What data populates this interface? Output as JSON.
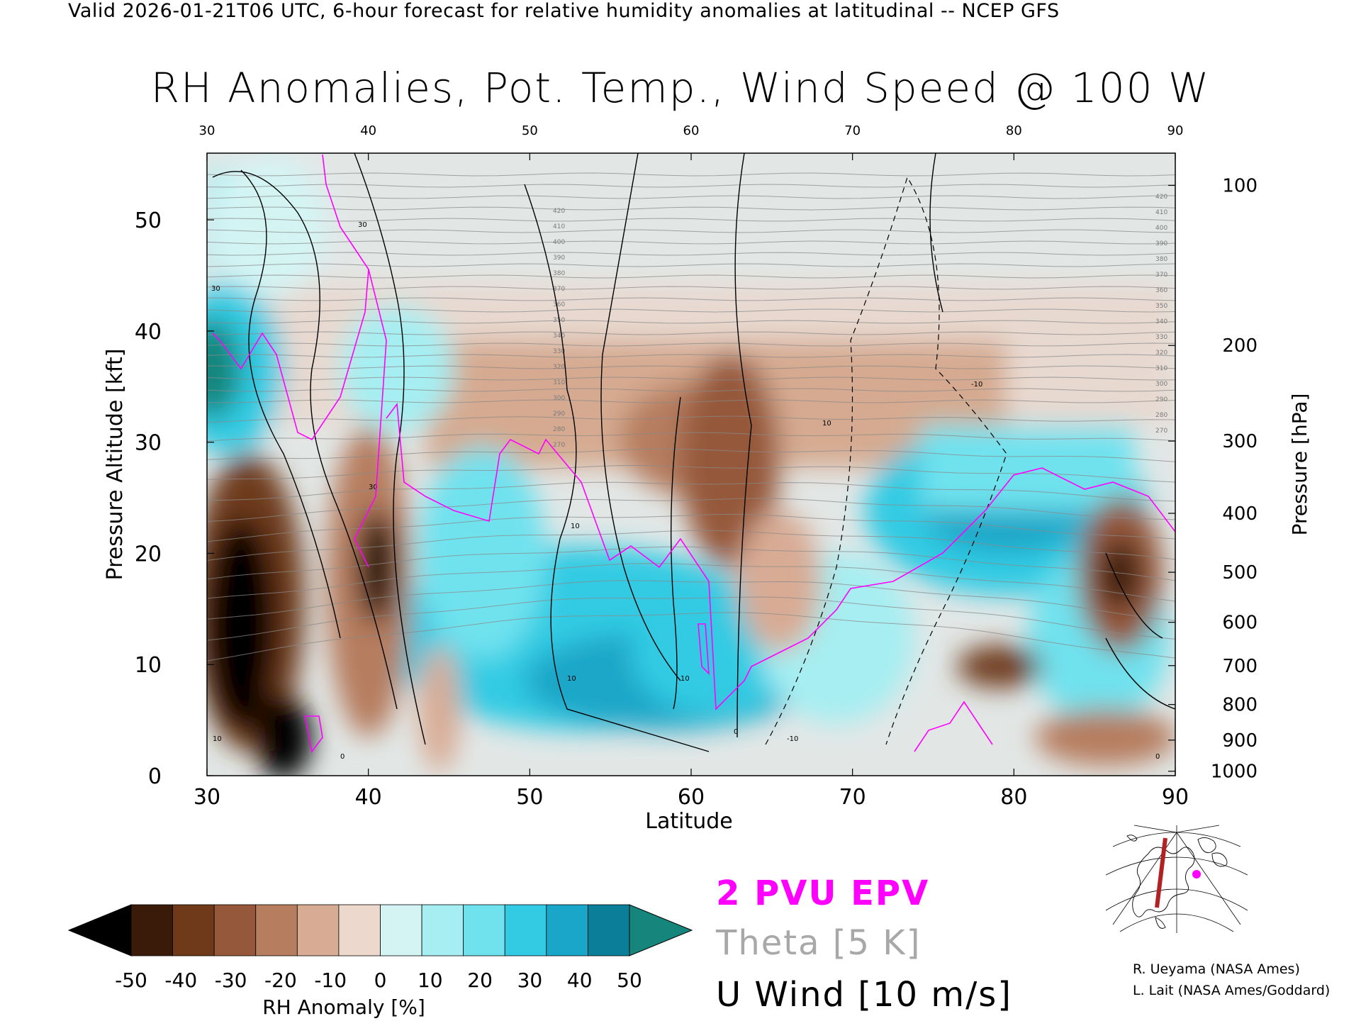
{
  "header": {
    "valid_line": "Valid 2026-01-21T06 UTC, 6-hour forecast for relative humidity anomalies at latitudinal -- NCEP GFS"
  },
  "chart_data": {
    "type": "heatmap",
    "title": "RH Anomalies, Pot. Temp., Wind Speed @ 100 W",
    "xlabel": "Latitude",
    "ylabel_left": "Pressure Altitude [kft]",
    "ylabel_right": "Pressure [hPa]",
    "xlim": [
      30,
      90
    ],
    "ylim": [
      0,
      56
    ],
    "x_ticks": [
      "30",
      "40",
      "50",
      "60",
      "70",
      "80",
      "90"
    ],
    "x_tick_values": [
      30,
      40,
      50,
      60,
      70,
      80,
      90
    ],
    "y_ticks": [
      "0",
      "10",
      "20",
      "30",
      "40",
      "50"
    ],
    "y_tick_values": [
      0,
      10,
      20,
      30,
      40,
      50
    ],
    "pressure_ticks": [
      "100",
      "200",
      "300",
      "400",
      "500",
      "600",
      "700",
      "800",
      "900",
      "1000"
    ],
    "pressure_tick_altitudes_kft": [
      53.1,
      38.7,
      30.1,
      23.6,
      18.3,
      13.8,
      9.9,
      6.4,
      3.2,
      0.4
    ],
    "colorbar": {
      "label": "RH Anomaly [%]",
      "ticks": [
        "-50",
        "-40",
        "-30",
        "-20",
        "-10",
        "0",
        "10",
        "20",
        "30",
        "40",
        "50"
      ],
      "colors": [
        "#000000",
        "#3a1a08",
        "#6e3a1a",
        "#95583a",
        "#b67d5f",
        "#d8ab94",
        "#ecd8cc",
        "#d4f4f4",
        "#a6eef2",
        "#70e2ee",
        "#33cbe3",
        "#1aa6c8",
        "#0b7f99",
        "#16857c"
      ]
    },
    "anomaly_features": [
      {
        "name": "dry core",
        "lat": 33,
        "kft": 14,
        "value": -55
      },
      {
        "name": "dry column",
        "lat": 40,
        "kft": 19,
        "value": -50
      },
      {
        "name": "moist upper-left",
        "lat": 31,
        "kft": 38,
        "value": 45
      },
      {
        "name": "moist mid-latitude band",
        "lat": 55,
        "kft": 12,
        "value": 35
      },
      {
        "name": "dry upper mid-latitudes",
        "lat": 62,
        "kft": 30,
        "value": -25
      },
      {
        "name": "moist high-latitude band",
        "lat": 79,
        "kft": 23,
        "value": 40
      },
      {
        "name": "dry pocket",
        "lat": 88,
        "kft": 18,
        "value": -40
      },
      {
        "name": "dry near-surface",
        "lat": 84,
        "kft": 5,
        "value": -25
      }
    ],
    "theta_labels": [
      "420",
      "410",
      "400",
      "390",
      "380",
      "370",
      "360",
      "350",
      "340",
      "330",
      "320",
      "310",
      "300",
      "290",
      "280",
      "270"
    ],
    "wind_labels": [
      "30",
      "30",
      "10",
      "0",
      "10",
      "10",
      "10",
      "30",
      "-10",
      "-10",
      "0",
      "10",
      "0"
    ],
    "legend": [
      {
        "label": "2 PVU EPV",
        "color": "#ff00ff"
      },
      {
        "label": "Theta [5 K]",
        "color": "#a8a8a8"
      },
      {
        "label": "U Wind [10 m/s]",
        "color": "#000000"
      }
    ]
  },
  "credits": {
    "line1": "R. Ueyama (NASA Ames)",
    "line2": "L. Lait (NASA Ames/Goddard)"
  },
  "inset_map": {
    "description_label": "",
    "marker_color": "#ff00ff",
    "line_color": "#b22222"
  }
}
